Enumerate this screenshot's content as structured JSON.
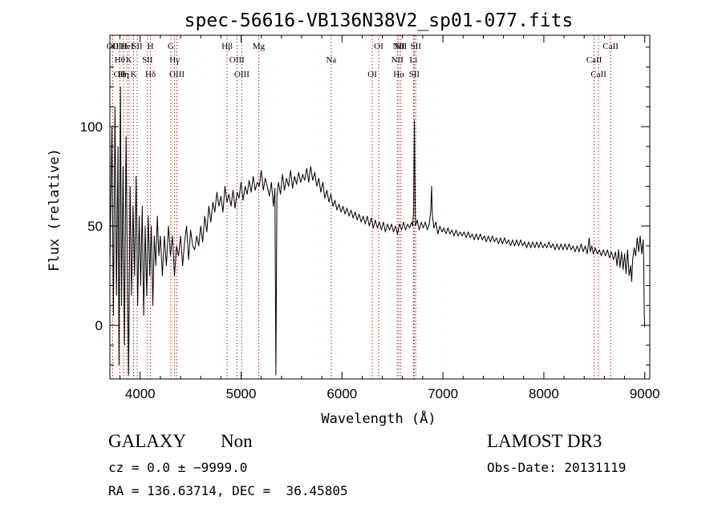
{
  "chart_data": {
    "type": "line",
    "title": "spec-56616-VB136N38V2_sp01-077.fits",
    "xlabel": "Wavelength (Å)",
    "ylabel": "Flux (relative)",
    "xlim": [
      3700,
      9050
    ],
    "ylim": [
      -27,
      146
    ],
    "xticks": [
      4000,
      5000,
      6000,
      7000,
      8000,
      9000
    ],
    "yticks": [
      0,
      50,
      100
    ],
    "grid": false,
    "line_color": "#000000",
    "marker_color": "#b22222",
    "series": [
      {
        "points": [
          [
            3700,
            30
          ],
          [
            3720,
            100
          ],
          [
            3735,
            5
          ],
          [
            3750,
            110
          ],
          [
            3765,
            15
          ],
          [
            3780,
            90
          ],
          [
            3790,
            -20
          ],
          [
            3805,
            120
          ],
          [
            3815,
            10
          ],
          [
            3830,
            80
          ],
          [
            3845,
            -10
          ],
          [
            3860,
            95
          ],
          [
            3875,
            20
          ],
          [
            3885,
            -25
          ],
          [
            3900,
            70
          ],
          [
            3915,
            15
          ],
          [
            3930,
            60
          ],
          [
            3945,
            25
          ],
          [
            3960,
            75
          ],
          [
            3975,
            10
          ],
          [
            3990,
            55
          ],
          [
            4005,
            20
          ],
          [
            4020,
            60
          ],
          [
            4035,
            5
          ],
          [
            4050,
            50
          ],
          [
            4065,
            15
          ],
          [
            4080,
            55
          ],
          [
            4095,
            25
          ],
          [
            4110,
            50
          ],
          [
            4125,
            10
          ],
          [
            4140,
            45
          ],
          [
            4155,
            30
          ],
          [
            4170,
            55
          ],
          [
            4185,
            35
          ],
          [
            4200,
            45
          ],
          [
            4220,
            25
          ],
          [
            4240,
            45
          ],
          [
            4260,
            30
          ],
          [
            4280,
            50
          ],
          [
            4300,
            35
          ],
          [
            4320,
            45
          ],
          [
            4340,
            25
          ],
          [
            4360,
            40
          ],
          [
            4380,
            35
          ],
          [
            4400,
            45
          ],
          [
            4420,
            30
          ],
          [
            4440,
            42
          ],
          [
            4460,
            50
          ],
          [
            4480,
            33
          ],
          [
            4500,
            48
          ],
          [
            4520,
            40
          ],
          [
            4540,
            38
          ],
          [
            4560,
            45
          ],
          [
            4580,
            40
          ],
          [
            4600,
            50
          ],
          [
            4620,
            42
          ],
          [
            4640,
            55
          ],
          [
            4660,
            47
          ],
          [
            4680,
            60
          ],
          [
            4700,
            52
          ],
          [
            4720,
            62
          ],
          [
            4740,
            57
          ],
          [
            4760,
            67
          ],
          [
            4780,
            60
          ],
          [
            4800,
            65
          ],
          [
            4820,
            57
          ],
          [
            4840,
            70
          ],
          [
            4860,
            62
          ],
          [
            4880,
            66
          ],
          [
            4900,
            60
          ],
          [
            4920,
            68
          ],
          [
            4940,
            59
          ],
          [
            4960,
            67
          ],
          [
            4980,
            64
          ],
          [
            5000,
            72
          ],
          [
            5020,
            63
          ],
          [
            5040,
            70
          ],
          [
            5060,
            66
          ],
          [
            5080,
            73
          ],
          [
            5100,
            67
          ],
          [
            5120,
            75
          ],
          [
            5140,
            68
          ],
          [
            5160,
            72
          ],
          [
            5180,
            70
          ],
          [
            5200,
            78
          ],
          [
            5220,
            68
          ],
          [
            5240,
            74
          ],
          [
            5260,
            70
          ],
          [
            5280,
            65
          ],
          [
            5300,
            72
          ],
          [
            5320,
            60
          ],
          [
            5335,
            69
          ],
          [
            5345,
            -25
          ],
          [
            5355,
            65
          ],
          [
            5370,
            72
          ],
          [
            5390,
            66
          ],
          [
            5410,
            76
          ],
          [
            5430,
            68
          ],
          [
            5450,
            74
          ],
          [
            5470,
            70
          ],
          [
            5490,
            78
          ],
          [
            5510,
            69
          ],
          [
            5530,
            75
          ],
          [
            5550,
            71
          ],
          [
            5570,
            77
          ],
          [
            5590,
            72
          ],
          [
            5610,
            76
          ],
          [
            5630,
            73
          ],
          [
            5650,
            79
          ],
          [
            5670,
            72
          ],
          [
            5690,
            80
          ],
          [
            5710,
            73
          ],
          [
            5730,
            77
          ],
          [
            5750,
            70
          ],
          [
            5770,
            74
          ],
          [
            5790,
            67
          ],
          [
            5810,
            72
          ],
          [
            5830,
            64
          ],
          [
            5850,
            68
          ],
          [
            5870,
            62
          ],
          [
            5890,
            66
          ],
          [
            5910,
            60
          ],
          [
            5930,
            63
          ],
          [
            5950,
            58
          ],
          [
            5970,
            61
          ],
          [
            5990,
            57
          ],
          [
            6010,
            60
          ],
          [
            6030,
            56
          ],
          [
            6050,
            59
          ],
          [
            6070,
            55
          ],
          [
            6090,
            58
          ],
          [
            6110,
            54
          ],
          [
            6130,
            57
          ],
          [
            6150,
            53
          ],
          [
            6170,
            56
          ],
          [
            6190,
            52
          ],
          [
            6210,
            55
          ],
          [
            6230,
            51
          ],
          [
            6250,
            55
          ],
          [
            6270,
            50
          ],
          [
            6290,
            54
          ],
          [
            6310,
            49
          ],
          [
            6330,
            53
          ],
          [
            6350,
            49
          ],
          [
            6370,
            52
          ],
          [
            6390,
            48
          ],
          [
            6410,
            52
          ],
          [
            6430,
            47
          ],
          [
            6450,
            51
          ],
          [
            6470,
            48
          ],
          [
            6490,
            51
          ],
          [
            6510,
            47
          ],
          [
            6530,
            50
          ],
          [
            6550,
            46
          ],
          [
            6570,
            51
          ],
          [
            6590,
            48
          ],
          [
            6610,
            52
          ],
          [
            6630,
            48
          ],
          [
            6650,
            51
          ],
          [
            6670,
            49
          ],
          [
            6690,
            52
          ],
          [
            6700,
            50
          ],
          [
            6710,
            58
          ],
          [
            6718,
            103
          ],
          [
            6722,
            72
          ],
          [
            6728,
            50
          ],
          [
            6745,
            53
          ],
          [
            6765,
            48
          ],
          [
            6785,
            52
          ],
          [
            6805,
            49
          ],
          [
            6825,
            52
          ],
          [
            6845,
            48
          ],
          [
            6865,
            51
          ],
          [
            6880,
            58
          ],
          [
            6888,
            70
          ],
          [
            6895,
            56
          ],
          [
            6910,
            49
          ],
          [
            6930,
            52
          ],
          [
            6950,
            46
          ],
          [
            6970,
            50
          ],
          [
            6990,
            47
          ],
          [
            7010,
            49
          ],
          [
            7030,
            46
          ],
          [
            7050,
            49
          ],
          [
            7070,
            46
          ],
          [
            7090,
            48
          ],
          [
            7110,
            45
          ],
          [
            7130,
            48
          ],
          [
            7150,
            45
          ],
          [
            7170,
            47
          ],
          [
            7190,
            45
          ],
          [
            7210,
            47
          ],
          [
            7230,
            44
          ],
          [
            7250,
            47
          ],
          [
            7270,
            44
          ],
          [
            7290,
            46
          ],
          [
            7310,
            43
          ],
          [
            7330,
            46
          ],
          [
            7350,
            43
          ],
          [
            7370,
            46
          ],
          [
            7390,
            43
          ],
          [
            7410,
            45
          ],
          [
            7430,
            42
          ],
          [
            7450,
            45
          ],
          [
            7470,
            42
          ],
          [
            7490,
            45
          ],
          [
            7510,
            42
          ],
          [
            7530,
            44
          ],
          [
            7550,
            41
          ],
          [
            7570,
            44
          ],
          [
            7590,
            41
          ],
          [
            7610,
            44
          ],
          [
            7630,
            41
          ],
          [
            7650,
            43
          ],
          [
            7670,
            40
          ],
          [
            7690,
            43
          ],
          [
            7710,
            40
          ],
          [
            7730,
            43
          ],
          [
            7750,
            40
          ],
          [
            7770,
            43
          ],
          [
            7790,
            40
          ],
          [
            7810,
            42
          ],
          [
            7830,
            39
          ],
          [
            7850,
            42
          ],
          [
            7870,
            39
          ],
          [
            7890,
            42
          ],
          [
            7910,
            39
          ],
          [
            7930,
            42
          ],
          [
            7950,
            39
          ],
          [
            7970,
            42
          ],
          [
            7990,
            39
          ],
          [
            8010,
            41
          ],
          [
            8030,
            39
          ],
          [
            8050,
            42
          ],
          [
            8070,
            39
          ],
          [
            8090,
            41
          ],
          [
            8110,
            38
          ],
          [
            8130,
            41
          ],
          [
            8150,
            38
          ],
          [
            8170,
            41
          ],
          [
            8190,
            38
          ],
          [
            8210,
            41
          ],
          [
            8230,
            38
          ],
          [
            8250,
            41
          ],
          [
            8270,
            38
          ],
          [
            8290,
            40
          ],
          [
            8310,
            37
          ],
          [
            8330,
            40
          ],
          [
            8350,
            37
          ],
          [
            8370,
            41
          ],
          [
            8390,
            37
          ],
          [
            8410,
            40
          ],
          [
            8430,
            36
          ],
          [
            8450,
            44
          ],
          [
            8460,
            37
          ],
          [
            8475,
            40
          ],
          [
            8490,
            36
          ],
          [
            8510,
            39
          ],
          [
            8530,
            36
          ],
          [
            8550,
            38
          ],
          [
            8570,
            35
          ],
          [
            8590,
            38
          ],
          [
            8610,
            35
          ],
          [
            8630,
            38
          ],
          [
            8650,
            34
          ],
          [
            8670,
            37
          ],
          [
            8690,
            33
          ],
          [
            8710,
            37
          ],
          [
            8725,
            30
          ],
          [
            8740,
            38
          ],
          [
            8755,
            29
          ],
          [
            8770,
            37
          ],
          [
            8785,
            28
          ],
          [
            8800,
            36
          ],
          [
            8815,
            26
          ],
          [
            8830,
            38
          ],
          [
            8845,
            25
          ],
          [
            8860,
            30
          ],
          [
            8870,
            22
          ],
          [
            8880,
            33
          ],
          [
            8895,
            39
          ],
          [
            8910,
            35
          ],
          [
            8925,
            44
          ],
          [
            8940,
            37
          ],
          [
            8955,
            45
          ],
          [
            8970,
            36
          ],
          [
            8985,
            43
          ],
          [
            8990,
            30
          ],
          [
            8995,
            5
          ],
          [
            9000,
            -1
          ]
        ]
      }
    ],
    "lines": [
      {
        "x": 3727,
        "labels": [
          "OII"
        ]
      },
      {
        "x": 3798,
        "labels": [
          "Hθ",
          "OII",
          "OIII"
        ]
      },
      {
        "x": 3835,
        "labels": [
          "Hη"
        ]
      },
      {
        "x": 3869,
        "labels": [
          "HeI"
        ]
      },
      {
        "x": 3889,
        "labels": [
          "K"
        ]
      },
      {
        "x": 3934,
        "labels": [
          "K"
        ]
      },
      {
        "x": 3970,
        "labels": [
          "SII"
        ]
      },
      {
        "x": 4072,
        "labels": [
          "SII"
        ]
      },
      {
        "x": 4102,
        "labels": [
          "Hδ",
          "H"
        ]
      },
      {
        "x": 4304,
        "labels": [
          "G"
        ]
      },
      {
        "x": 4341,
        "labels": [
          "Hγ"
        ]
      },
      {
        "x": 4364,
        "labels": [
          "OIII"
        ]
      },
      {
        "x": 4861,
        "labels": [
          "Hβ"
        ]
      },
      {
        "x": 4959,
        "labels": [
          "OIII"
        ]
      },
      {
        "x": 5007,
        "labels": [
          "OIII"
        ]
      },
      {
        "x": 5175,
        "labels": [
          "Mg"
        ]
      },
      {
        "x": 5893,
        "labels": [
          "Na"
        ]
      },
      {
        "x": 6300,
        "labels": [
          "OI"
        ]
      },
      {
        "x": 6364,
        "labels": [
          "OI"
        ]
      },
      {
        "x": 6548,
        "labels": [
          "NII"
        ]
      },
      {
        "x": 6563,
        "labels": [
          "Hα",
          "NII"
        ]
      },
      {
        "x": 6583,
        "labels": [
          "NII"
        ]
      },
      {
        "x": 6708,
        "labels": [
          "Li"
        ]
      },
      {
        "x": 6716,
        "labels": [
          "SII"
        ]
      },
      {
        "x": 6731,
        "labels": [
          "SII"
        ]
      },
      {
        "x": 8498,
        "labels": [
          "CaII"
        ]
      },
      {
        "x": 8542,
        "labels": [
          "CaII"
        ]
      },
      {
        "x": 8662,
        "labels": [
          "CaII"
        ]
      }
    ]
  },
  "info": {
    "class": "GALAXY",
    "subclass": "Non",
    "survey": "LAMOST DR3",
    "cz": "cz = 0.0 ± −9999.0",
    "obs_date": "Obs-Date: 20131119",
    "radec": "RA = 136.63714, DEC =  36.45805"
  }
}
